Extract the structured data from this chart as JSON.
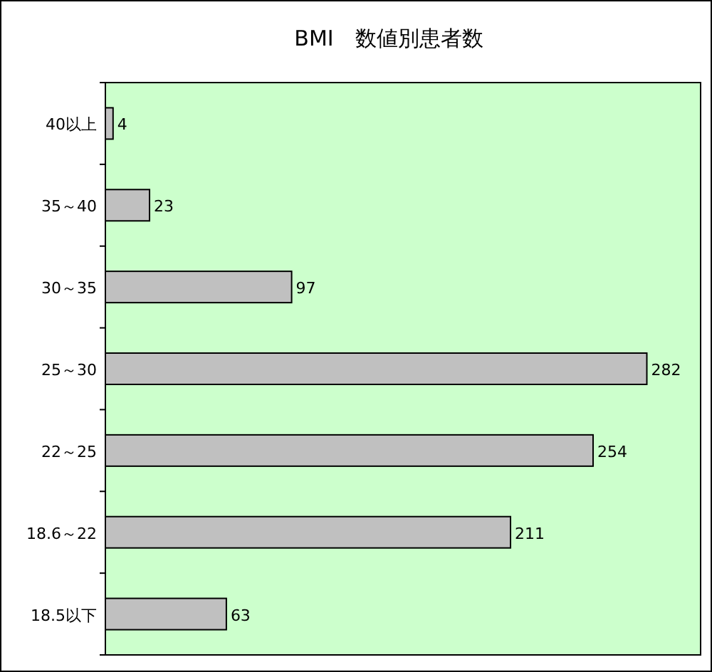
{
  "chart_data": {
    "type": "bar",
    "orientation": "horizontal",
    "title": "BMI　数値別患者数",
    "categories": [
      "40以上",
      "35～40",
      "30～35",
      "25～30",
      "22～25",
      "18.6～22",
      "18.5以下"
    ],
    "values": [
      4,
      23,
      97,
      282,
      254,
      211,
      63
    ],
    "color": "#c0c0c0",
    "xlim": [
      0,
      310
    ],
    "data_labels": true
  }
}
